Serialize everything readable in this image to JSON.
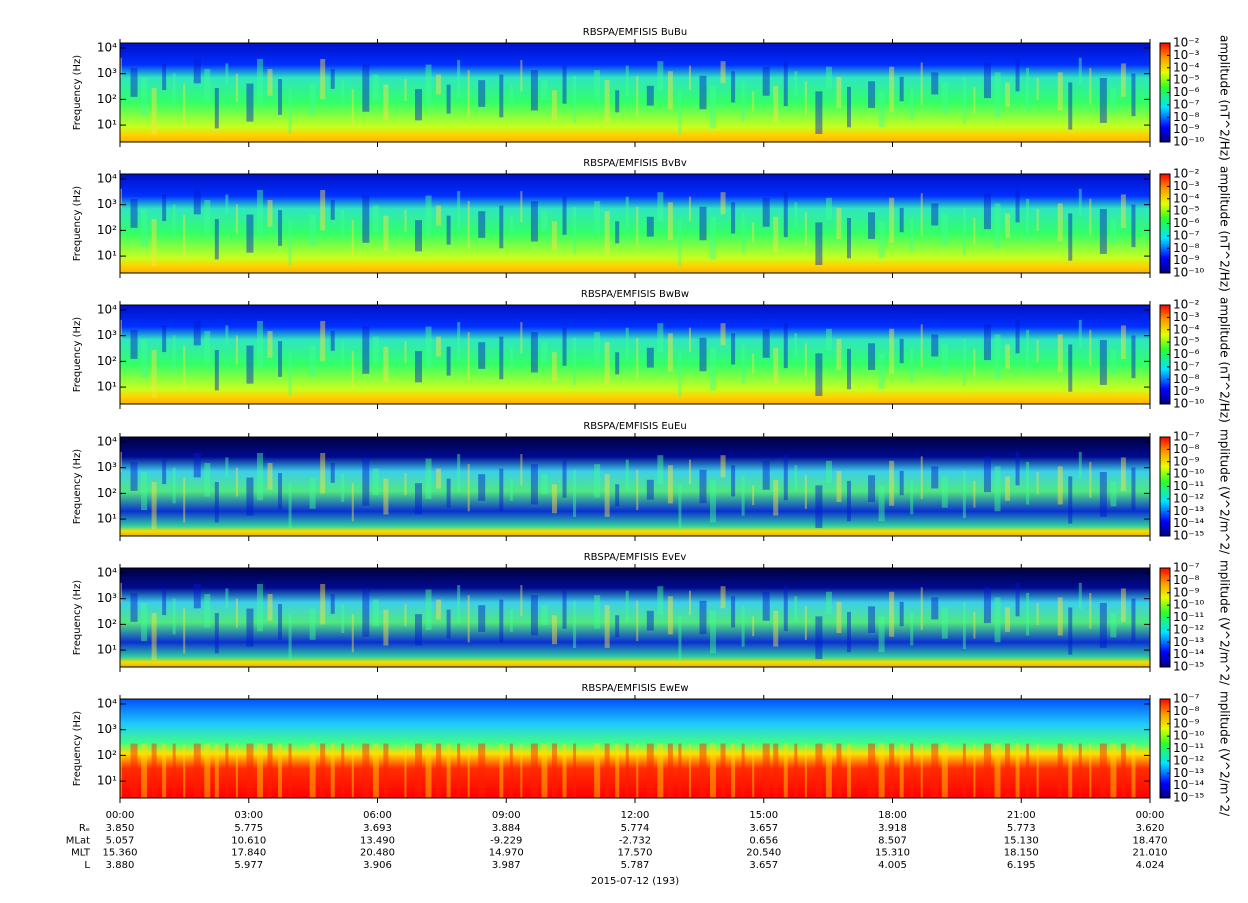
{
  "chart_data": [
    {
      "type": "spectrogram",
      "title": "RBSPA/EMFISIS  BuBu",
      "y_label": "Frequency (Hz)",
      "ylog": true,
      "ylim": [
        2.2,
        15600
      ],
      "yticks": [
        {
          "value": 10,
          "label": "10¹"
        },
        {
          "value": 100,
          "label": "10²"
        },
        {
          "value": 1000,
          "label": "10³"
        },
        {
          "value": 10000,
          "label": "10⁴"
        }
      ],
      "colorbar_label": "amplitude (nT^2/Hz)",
      "clog": true,
      "clim": [
        1e-10,
        0.01
      ],
      "cticks": [
        {
          "value": 1e-10,
          "label": "10⁻¹⁰"
        },
        {
          "value": 1e-09,
          "label": "10⁻⁹"
        },
        {
          "value": 1e-08,
          "label": "10⁻⁸"
        },
        {
          "value": 1e-07,
          "label": "10⁻⁷"
        },
        {
          "value": 1e-06,
          "label": "10⁻⁶"
        },
        {
          "value": 1e-05,
          "label": "10⁻⁵"
        },
        {
          "value": 0.0001,
          "label": "10⁻⁴"
        },
        {
          "value": 0.001,
          "label": "10⁻³"
        },
        {
          "value": 0.01,
          "label": "10⁻²"
        }
      ]
    },
    {
      "type": "spectrogram",
      "title": "RBSPA/EMFISIS  BvBv",
      "y_label": "Frequency (Hz)",
      "ylog": true,
      "ylim": [
        2.2,
        15600
      ],
      "yticks": [
        {
          "value": 10,
          "label": "10¹"
        },
        {
          "value": 100,
          "label": "10²"
        },
        {
          "value": 1000,
          "label": "10³"
        },
        {
          "value": 10000,
          "label": "10⁴"
        }
      ],
      "colorbar_label": "amplitude (nT^2/Hz)",
      "clog": true,
      "clim": [
        1e-10,
        0.01
      ],
      "cticks": [
        {
          "value": 1e-10,
          "label": "10⁻¹⁰"
        },
        {
          "value": 1e-09,
          "label": "10⁻⁹"
        },
        {
          "value": 1e-08,
          "label": "10⁻⁸"
        },
        {
          "value": 1e-07,
          "label": "10⁻⁷"
        },
        {
          "value": 1e-06,
          "label": "10⁻⁶"
        },
        {
          "value": 1e-05,
          "label": "10⁻⁵"
        },
        {
          "value": 0.0001,
          "label": "10⁻⁴"
        },
        {
          "value": 0.001,
          "label": "10⁻³"
        },
        {
          "value": 0.01,
          "label": "10⁻²"
        }
      ]
    },
    {
      "type": "spectrogram",
      "title": "RBSPA/EMFISIS  BwBw",
      "y_label": "Frequency (Hz)",
      "ylog": true,
      "ylim": [
        2.2,
        15600
      ],
      "yticks": [
        {
          "value": 10,
          "label": "10¹"
        },
        {
          "value": 100,
          "label": "10²"
        },
        {
          "value": 1000,
          "label": "10³"
        },
        {
          "value": 10000,
          "label": "10⁴"
        }
      ],
      "colorbar_label": "amplitude (nT^2/Hz)",
      "clog": true,
      "clim": [
        1e-10,
        0.01
      ],
      "cticks": [
        {
          "value": 1e-10,
          "label": "10⁻¹⁰"
        },
        {
          "value": 1e-09,
          "label": "10⁻⁹"
        },
        {
          "value": 1e-08,
          "label": "10⁻⁸"
        },
        {
          "value": 1e-07,
          "label": "10⁻⁷"
        },
        {
          "value": 1e-06,
          "label": "10⁻⁶"
        },
        {
          "value": 1e-05,
          "label": "10⁻⁵"
        },
        {
          "value": 0.0001,
          "label": "10⁻⁴"
        },
        {
          "value": 0.001,
          "label": "10⁻³"
        },
        {
          "value": 0.01,
          "label": "10⁻²"
        }
      ]
    },
    {
      "type": "spectrogram",
      "title": "RBSPA/EMFISIS  EuEu",
      "y_label": "Frequency (Hz)",
      "ylog": true,
      "ylim": [
        2.2,
        15600
      ],
      "yticks": [
        {
          "value": 10,
          "label": "10¹"
        },
        {
          "value": 100,
          "label": "10²"
        },
        {
          "value": 1000,
          "label": "10³"
        },
        {
          "value": 10000,
          "label": "10⁴"
        }
      ],
      "colorbar_label": "mplitude (V^2/m^2/",
      "clog": true,
      "clim": [
        1e-15,
        1e-07
      ],
      "cticks": [
        {
          "value": 1e-15,
          "label": "10⁻¹⁵"
        },
        {
          "value": 1e-14,
          "label": "10⁻¹⁴"
        },
        {
          "value": 1e-13,
          "label": "10⁻¹³"
        },
        {
          "value": 1e-12,
          "label": "10⁻¹²"
        },
        {
          "value": 1e-11,
          "label": "10⁻¹¹"
        },
        {
          "value": 1e-10,
          "label": "10⁻¹⁰"
        },
        {
          "value": 1e-09,
          "label": "10⁻⁹"
        },
        {
          "value": 1e-08,
          "label": "10⁻⁸"
        },
        {
          "value": 1e-07,
          "label": "10⁻⁷"
        }
      ]
    },
    {
      "type": "spectrogram",
      "title": "RBSPA/EMFISIS  EvEv",
      "y_label": "Frequency (Hz)",
      "ylog": true,
      "ylim": [
        2.2,
        15600
      ],
      "yticks": [
        {
          "value": 10,
          "label": "10¹"
        },
        {
          "value": 100,
          "label": "10²"
        },
        {
          "value": 1000,
          "label": "10³"
        },
        {
          "value": 10000,
          "label": "10⁴"
        }
      ],
      "colorbar_label": "mplitude (V^2/m^2/",
      "clog": true,
      "clim": [
        1e-15,
        1e-07
      ],
      "cticks": [
        {
          "value": 1e-15,
          "label": "10⁻¹⁵"
        },
        {
          "value": 1e-14,
          "label": "10⁻¹⁴"
        },
        {
          "value": 1e-13,
          "label": "10⁻¹³"
        },
        {
          "value": 1e-12,
          "label": "10⁻¹²"
        },
        {
          "value": 1e-11,
          "label": "10⁻¹¹"
        },
        {
          "value": 1e-10,
          "label": "10⁻¹⁰"
        },
        {
          "value": 1e-09,
          "label": "10⁻⁹"
        },
        {
          "value": 1e-08,
          "label": "10⁻⁸"
        },
        {
          "value": 1e-07,
          "label": "10⁻⁷"
        }
      ]
    },
    {
      "type": "spectrogram",
      "title": "RBSPA/EMFISIS  EwEw",
      "y_label": "Frequency (Hz)",
      "ylog": true,
      "ylim": [
        2.2,
        15600
      ],
      "yticks": [
        {
          "value": 10,
          "label": "10¹"
        },
        {
          "value": 100,
          "label": "10²"
        },
        {
          "value": 1000,
          "label": "10³"
        },
        {
          "value": 10000,
          "label": "10⁴"
        }
      ],
      "colorbar_label": "mplitude (V^2/m^2/",
      "clog": true,
      "clim": [
        1e-15,
        1e-07
      ],
      "cticks": [
        {
          "value": 1e-15,
          "label": "10⁻¹⁵"
        },
        {
          "value": 1e-14,
          "label": "10⁻¹⁴"
        },
        {
          "value": 1e-13,
          "label": "10⁻¹³"
        },
        {
          "value": 1e-12,
          "label": "10⁻¹²"
        },
        {
          "value": 1e-11,
          "label": "10⁻¹¹"
        },
        {
          "value": 1e-10,
          "label": "10⁻¹⁰"
        },
        {
          "value": 1e-09,
          "label": "10⁻⁹"
        },
        {
          "value": 1e-08,
          "label": "10⁻⁸"
        },
        {
          "value": 1e-07,
          "label": "10⁻⁷"
        }
      ]
    }
  ],
  "x_axis": {
    "xlim": [
      0,
      24
    ],
    "label": "2015-07-12 (193)",
    "xticks": [
      {
        "value": 0,
        "label": "00:00"
      },
      {
        "value": 3,
        "label": "03:00"
      },
      {
        "value": 6,
        "label": "06:00"
      },
      {
        "value": 9,
        "label": "09:00"
      },
      {
        "value": 12,
        "label": "12:00"
      },
      {
        "value": 15,
        "label": "15:00"
      },
      {
        "value": 18,
        "label": "18:00"
      },
      {
        "value": 21,
        "label": "21:00"
      },
      {
        "value": 24,
        "label": "00:00"
      }
    ]
  },
  "ephemeris": {
    "rows": [
      {
        "name": "Rₑ",
        "values": [
          "3.850",
          "5.775",
          "3.693",
          "3.884",
          "5.774",
          "3.657",
          "3.918",
          "5.773",
          "3.620"
        ]
      },
      {
        "name": "MLat",
        "values": [
          "5.057",
          "10.610",
          "13.490",
          "-9.229",
          "-2.732",
          "0.656",
          "8.507",
          "15.130",
          "18.470"
        ]
      },
      {
        "name": "MLT",
        "values": [
          "15.360",
          "17.840",
          "20.480",
          "14.970",
          "17.570",
          "20.540",
          "15.310",
          "18.150",
          "21.010"
        ]
      },
      {
        "name": "L",
        "values": [
          "3.880",
          "5.977",
          "3.906",
          "3.987",
          "5.787",
          "3.657",
          "4.005",
          "6.195",
          "4.024"
        ]
      }
    ]
  }
}
